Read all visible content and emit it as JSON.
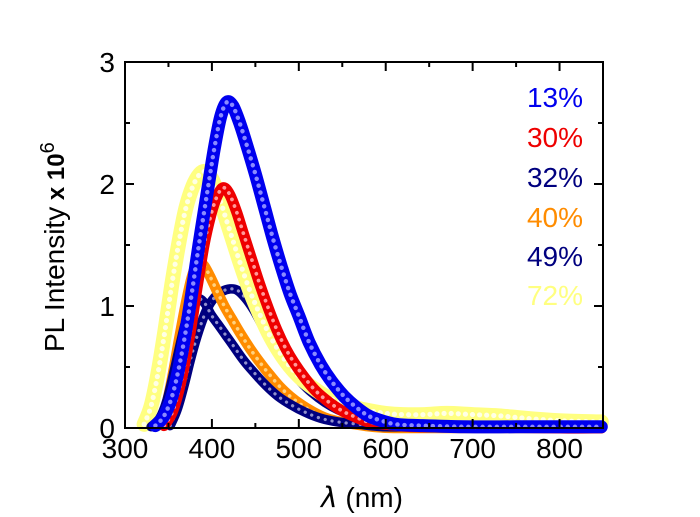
{
  "figure": {
    "background": "#ffffff",
    "text_color": "#000000"
  },
  "y_axis": {
    "title_main": "PL Intensity",
    "title_mult": " x 10",
    "title_exp": "6",
    "tick_labels": [
      "0",
      "1",
      "2",
      "3"
    ]
  },
  "x_axis": {
    "title_symbol": "λ",
    "title_rest": " (nm)",
    "tick_labels": [
      "300",
      "400",
      "500",
      "600",
      "700",
      "800"
    ]
  },
  "legend": {
    "position": "top-right"
  },
  "chart_data": {
    "type": "scatter",
    "title": "",
    "xlabel": "λ (nm)",
    "ylabel": "PL Intensity x 10^6",
    "xlim": [
      300,
      850
    ],
    "ylim": [
      0,
      3
    ],
    "grid": false,
    "legend_position": "top-right",
    "x_major_ticks": [
      300,
      400,
      500,
      600,
      700,
      800
    ],
    "x_minor_ticks": [
      350,
      450,
      550,
      650,
      750,
      850
    ],
    "y_major_ticks": [
      0,
      1,
      2,
      3
    ],
    "y_minor_ticks": [
      0.5,
      1.5,
      2.5
    ],
    "draw_order": [
      2,
      5,
      3,
      4,
      1,
      0
    ],
    "series": [
      {
        "label": "13%",
        "color": "#0000EE",
        "tint": "#8A8AFF",
        "width": 13,
        "peak": {
          "x": 417,
          "y": 2.67
        },
        "points": [
          [
            335,
            0.02
          ],
          [
            345,
            0.1
          ],
          [
            355,
            0.28
          ],
          [
            365,
            0.6
          ],
          [
            375,
            1.02
          ],
          [
            385,
            1.5
          ],
          [
            395,
            1.95
          ],
          [
            403,
            2.3
          ],
          [
            410,
            2.55
          ],
          [
            417,
            2.67
          ],
          [
            424,
            2.64
          ],
          [
            432,
            2.5
          ],
          [
            440,
            2.32
          ],
          [
            450,
            2.08
          ],
          [
            460,
            1.82
          ],
          [
            470,
            1.56
          ],
          [
            480,
            1.32
          ],
          [
            490,
            1.1
          ],
          [
            500,
            0.92
          ],
          [
            512,
            0.7
          ],
          [
            525,
            0.52
          ],
          [
            538,
            0.38
          ],
          [
            552,
            0.26
          ],
          [
            566,
            0.17
          ],
          [
            580,
            0.1
          ],
          [
            595,
            0.06
          ],
          [
            612,
            0.03
          ],
          [
            640,
            0.02
          ],
          [
            690,
            0.01
          ],
          [
            750,
            0.01
          ],
          [
            800,
            0.01
          ],
          [
            848,
            0.01
          ]
        ]
      },
      {
        "label": "30%",
        "color": "#EE0000",
        "tint": "#FF9999",
        "width": 11,
        "peak": {
          "x": 413,
          "y": 1.97
        },
        "points": [
          [
            345,
            0.02
          ],
          [
            355,
            0.14
          ],
          [
            365,
            0.4
          ],
          [
            375,
            0.78
          ],
          [
            383,
            1.15
          ],
          [
            391,
            1.5
          ],
          [
            399,
            1.75
          ],
          [
            406,
            1.9
          ],
          [
            413,
            1.97
          ],
          [
            420,
            1.92
          ],
          [
            428,
            1.78
          ],
          [
            436,
            1.6
          ],
          [
            445,
            1.4
          ],
          [
            455,
            1.18
          ],
          [
            465,
            0.98
          ],
          [
            475,
            0.8
          ],
          [
            485,
            0.65
          ],
          [
            495,
            0.53
          ],
          [
            507,
            0.41
          ],
          [
            520,
            0.3
          ],
          [
            535,
            0.21
          ],
          [
            550,
            0.14
          ],
          [
            565,
            0.09
          ],
          [
            580,
            0.05
          ],
          [
            600,
            0.03
          ],
          [
            635,
            0.01
          ],
          [
            700,
            0.01
          ],
          [
            800,
            0.0
          ],
          [
            848,
            0.0
          ]
        ]
      },
      {
        "label": "32%",
        "color": "#00007F",
        "tint": "#9090CC",
        "width": 9.5,
        "peak": {
          "x": 425,
          "y": 1.14
        },
        "points": [
          [
            352,
            0.02
          ],
          [
            360,
            0.15
          ],
          [
            368,
            0.35
          ],
          [
            376,
            0.58
          ],
          [
            385,
            0.8
          ],
          [
            394,
            0.97
          ],
          [
            403,
            1.07
          ],
          [
            412,
            1.12
          ],
          [
            421,
            1.14
          ],
          [
            429,
            1.13
          ],
          [
            438,
            1.07
          ],
          [
            448,
            0.97
          ],
          [
            458,
            0.84
          ],
          [
            468,
            0.72
          ],
          [
            478,
            0.6
          ],
          [
            490,
            0.48
          ],
          [
            502,
            0.38
          ],
          [
            515,
            0.29
          ],
          [
            530,
            0.21
          ],
          [
            545,
            0.15
          ],
          [
            560,
            0.11
          ],
          [
            580,
            0.07
          ],
          [
            600,
            0.05
          ],
          [
            625,
            0.04
          ],
          [
            650,
            0.05
          ],
          [
            675,
            0.06
          ],
          [
            700,
            0.05
          ],
          [
            730,
            0.04
          ],
          [
            762,
            0.06
          ],
          [
            800,
            0.04
          ],
          [
            848,
            0.03
          ]
        ]
      },
      {
        "label": "40%",
        "color": "#FF8C00",
        "tint": "#FFD27F",
        "width": 10.5,
        "peak": {
          "x": 384,
          "y": 1.36
        },
        "points": [
          [
            338,
            0.02
          ],
          [
            346,
            0.15
          ],
          [
            354,
            0.4
          ],
          [
            362,
            0.72
          ],
          [
            370,
            1.02
          ],
          [
            377,
            1.24
          ],
          [
            384,
            1.36
          ],
          [
            391,
            1.33
          ],
          [
            398,
            1.24
          ],
          [
            406,
            1.12
          ],
          [
            415,
            0.99
          ],
          [
            424,
            0.88
          ],
          [
            434,
            0.76
          ],
          [
            444,
            0.65
          ],
          [
            455,
            0.54
          ],
          [
            466,
            0.44
          ],
          [
            478,
            0.34
          ],
          [
            490,
            0.26
          ],
          [
            503,
            0.19
          ],
          [
            517,
            0.13
          ],
          [
            532,
            0.08
          ],
          [
            548,
            0.05
          ],
          [
            565,
            0.03
          ],
          [
            585,
            0.01
          ],
          [
            615,
            0.0
          ],
          [
            700,
            0.0
          ],
          [
            848,
            0.0
          ]
        ]
      },
      {
        "label": "49%",
        "color": "#00007F",
        "tint": "#9090CC",
        "width": 9.5,
        "peak": {
          "x": 385,
          "y": 1.06
        },
        "points": [
          [
            330,
            0.01
          ],
          [
            340,
            0.08
          ],
          [
            348,
            0.22
          ],
          [
            356,
            0.45
          ],
          [
            364,
            0.7
          ],
          [
            371,
            0.9
          ],
          [
            378,
            1.02
          ],
          [
            385,
            1.06
          ],
          [
            392,
            1.02
          ],
          [
            399,
            0.93
          ],
          [
            407,
            0.85
          ],
          [
            416,
            0.76
          ],
          [
            426,
            0.66
          ],
          [
            437,
            0.55
          ],
          [
            449,
            0.45
          ],
          [
            462,
            0.35
          ],
          [
            476,
            0.26
          ],
          [
            491,
            0.19
          ],
          [
            507,
            0.13
          ],
          [
            525,
            0.08
          ],
          [
            545,
            0.05
          ],
          [
            570,
            0.03
          ],
          [
            600,
            0.01
          ],
          [
            650,
            0.01
          ],
          [
            700,
            0.0
          ],
          [
            800,
            0.0
          ],
          [
            848,
            0.0
          ]
        ]
      },
      {
        "label": "72%",
        "color": "#FFFF80",
        "tint": "#FFFFE6",
        "width": 15,
        "peak": {
          "x": 393,
          "y": 2.1
        },
        "points": [
          [
            322,
            0.03
          ],
          [
            330,
            0.18
          ],
          [
            338,
            0.45
          ],
          [
            346,
            0.8
          ],
          [
            354,
            1.18
          ],
          [
            362,
            1.52
          ],
          [
            370,
            1.8
          ],
          [
            378,
            1.98
          ],
          [
            386,
            2.08
          ],
          [
            393,
            2.1
          ],
          [
            400,
            2.04
          ],
          [
            408,
            1.9
          ],
          [
            416,
            1.72
          ],
          [
            425,
            1.52
          ],
          [
            434,
            1.32
          ],
          [
            444,
            1.12
          ],
          [
            454,
            0.95
          ],
          [
            465,
            0.78
          ],
          [
            477,
            0.63
          ],
          [
            489,
            0.51
          ],
          [
            502,
            0.41
          ],
          [
            516,
            0.33
          ],
          [
            531,
            0.26
          ],
          [
            547,
            0.21
          ],
          [
            564,
            0.17
          ],
          [
            582,
            0.14
          ],
          [
            600,
            0.12
          ],
          [
            620,
            0.11
          ],
          [
            645,
            0.11
          ],
          [
            670,
            0.12
          ],
          [
            700,
            0.11
          ],
          [
            730,
            0.1
          ],
          [
            760,
            0.08
          ],
          [
            800,
            0.06
          ],
          [
            848,
            0.05
          ]
        ]
      }
    ]
  },
  "legend_tops": [
    84,
    124,
    164,
    204,
    243,
    282
  ]
}
